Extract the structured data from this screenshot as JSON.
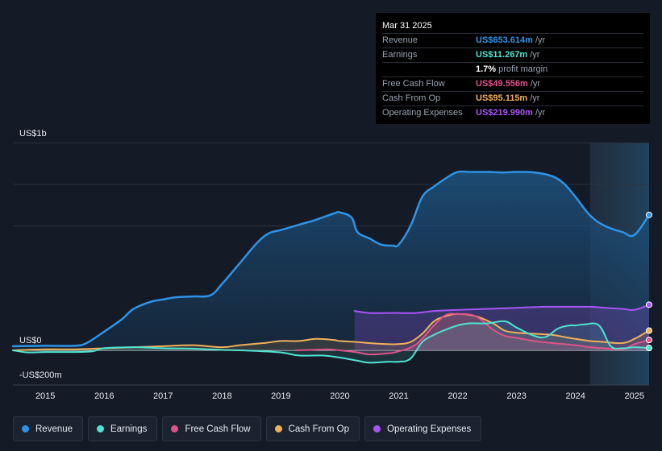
{
  "tooltip": {
    "date": "Mar 31 2025",
    "rows": [
      {
        "name": "Revenue",
        "value": "US$653.614m",
        "unit": "/yr",
        "color": "#2e93e6"
      },
      {
        "name": "Earnings",
        "value": "US$11.267m",
        "unit": "/yr",
        "color": "#4fe3d2"
      },
      {
        "name": "",
        "value": "1.7%",
        "unit": "profit margin",
        "color": "#ffffff"
      },
      {
        "name": "Free Cash Flow",
        "value": "US$49.556m",
        "unit": "/yr",
        "color": "#e0528c"
      },
      {
        "name": "Cash From Op",
        "value": "US$95.115m",
        "unit": "/yr",
        "color": "#f0b05a"
      },
      {
        "name": "Operating Expenses",
        "value": "US$219.990m",
        "unit": "/yr",
        "color": "#a855f7"
      }
    ]
  },
  "chart_data": {
    "type": "area",
    "title": "",
    "xlabel": "",
    "ylabel": "",
    "y_axis_labels": {
      "top": "US$1b",
      "zero": "US$0",
      "bottom": "-US$200m"
    },
    "xlim": [
      2014.45,
      2025.25
    ],
    "ylim": [
      -200,
      1000
    ],
    "x_ticks": [
      2015,
      2016,
      2017,
      2018,
      2019,
      2020,
      2021,
      2022,
      2023,
      2024,
      2025
    ],
    "x_tick_labels": [
      "2015",
      "2016",
      "2017",
      "2018",
      "2019",
      "2020",
      "2021",
      "2022",
      "2023",
      "2024",
      "2025"
    ],
    "gridlines": [
      1000,
      800,
      600
    ],
    "forecast_start": 2024.25,
    "series": [
      {
        "name": "Revenue",
        "color": "#2e93e6",
        "x": [
          2014.45,
          2015.0,
          2015.5,
          2015.7,
          2016.0,
          2016.3,
          2016.5,
          2016.8,
          2017.0,
          2017.2,
          2017.5,
          2017.8,
          2018.0,
          2018.3,
          2018.6,
          2018.8,
          2019.0,
          2019.3,
          2019.6,
          2019.9,
          2020.0,
          2020.2,
          2020.3,
          2020.5,
          2020.7,
          2020.9,
          2021.0,
          2021.2,
          2021.4,
          2021.6,
          2021.8,
          2022.0,
          2022.2,
          2022.5,
          2022.8,
          2023.0,
          2023.3,
          2023.6,
          2023.8,
          2024.0,
          2024.25,
          2024.5,
          2024.8,
          2025.0,
          2025.25
        ],
        "values": [
          20,
          22,
          22,
          35,
          90,
          150,
          200,
          235,
          245,
          255,
          260,
          265,
          320,
          420,
          520,
          565,
          580,
          605,
          630,
          660,
          665,
          640,
          570,
          540,
          510,
          505,
          510,
          600,
          740,
          790,
          830,
          860,
          860,
          860,
          858,
          860,
          858,
          840,
          805,
          740,
          650,
          600,
          570,
          556,
          653
        ]
      },
      {
        "name": "Earnings",
        "color": "#4fe3d2",
        "x": [
          2014.45,
          2014.7,
          2015.0,
          2015.5,
          2015.8,
          2016.0,
          2016.5,
          2017.0,
          2017.5,
          2018.0,
          2018.5,
          2019.0,
          2019.3,
          2019.7,
          2020.0,
          2020.3,
          2020.5,
          2020.8,
          2021.0,
          2021.2,
          2021.4,
          2021.6,
          2021.8,
          2022.0,
          2022.2,
          2022.5,
          2022.8,
          2023.0,
          2023.3,
          2023.5,
          2023.7,
          2023.9,
          2024.0,
          2024.15,
          2024.4,
          2024.6,
          2024.8,
          2025.0,
          2025.25
        ],
        "values": [
          0,
          -10,
          -8,
          -8,
          -5,
          10,
          15,
          10,
          8,
          2,
          -2,
          -10,
          -25,
          -25,
          -35,
          -50,
          -60,
          -55,
          -55,
          -40,
          40,
          75,
          100,
          120,
          130,
          130,
          140,
          110,
          70,
          65,
          105,
          120,
          120,
          125,
          120,
          20,
          10,
          15,
          11
        ]
      },
      {
        "name": "Free Cash Flow",
        "color": "#e0528c",
        "x": [
          2019.25,
          2019.5,
          2019.8,
          2020.0,
          2020.3,
          2020.5,
          2020.8,
          2021.0,
          2021.3,
          2021.6,
          2021.8,
          2022.0,
          2022.3,
          2022.6,
          2022.8,
          2023.0,
          2023.3,
          2023.6,
          2023.8,
          2024.0,
          2024.25,
          2024.5,
          2024.8,
          2025.0,
          2025.25
        ],
        "values": [
          0,
          2,
          5,
          0,
          -10,
          -20,
          -15,
          -5,
          30,
          120,
          170,
          175,
          165,
          100,
          70,
          60,
          45,
          35,
          30,
          25,
          15,
          10,
          5,
          30,
          50
        ]
      },
      {
        "name": "Cash From Op",
        "color": "#f0b05a",
        "x": [
          2014.45,
          2015.0,
          2015.5,
          2016.0,
          2016.5,
          2017.0,
          2017.5,
          2018.0,
          2018.3,
          2018.7,
          2019.0,
          2019.3,
          2019.6,
          2019.9,
          2020.0,
          2020.3,
          2020.5,
          2020.8,
          2021.0,
          2021.2,
          2021.4,
          2021.6,
          2021.8,
          2022.0,
          2022.3,
          2022.6,
          2022.8,
          2023.0,
          2023.3,
          2023.6,
          2023.8,
          2024.0,
          2024.25,
          2024.5,
          2024.8,
          2025.0,
          2025.25
        ],
        "values": [
          0,
          5,
          5,
          10,
          15,
          20,
          25,
          15,
          25,
          35,
          45,
          45,
          55,
          50,
          45,
          40,
          35,
          30,
          30,
          40,
          80,
          140,
          165,
          175,
          165,
          130,
          95,
          85,
          80,
          75,
          65,
          55,
          45,
          40,
          35,
          55,
          95
        ]
      },
      {
        "name": "Operating Expenses",
        "color": "#a855f7",
        "x": [
          2020.25,
          2020.5,
          2020.8,
          2021.0,
          2021.3,
          2021.6,
          2022.0,
          2022.5,
          2023.0,
          2023.5,
          2024.0,
          2024.25,
          2024.5,
          2024.8,
          2025.0,
          2025.25
        ],
        "values": [
          190,
          180,
          180,
          180,
          180,
          190,
          195,
          200,
          205,
          210,
          210,
          210,
          205,
          200,
          195,
          220
        ]
      }
    ]
  },
  "legend": [
    {
      "label": "Revenue",
      "color": "#2e93e6"
    },
    {
      "label": "Earnings",
      "color": "#4fe3d2"
    },
    {
      "label": "Free Cash Flow",
      "color": "#e0528c"
    },
    {
      "label": "Cash From Op",
      "color": "#f0b05a"
    },
    {
      "label": "Operating Expenses",
      "color": "#a855f7"
    }
  ]
}
